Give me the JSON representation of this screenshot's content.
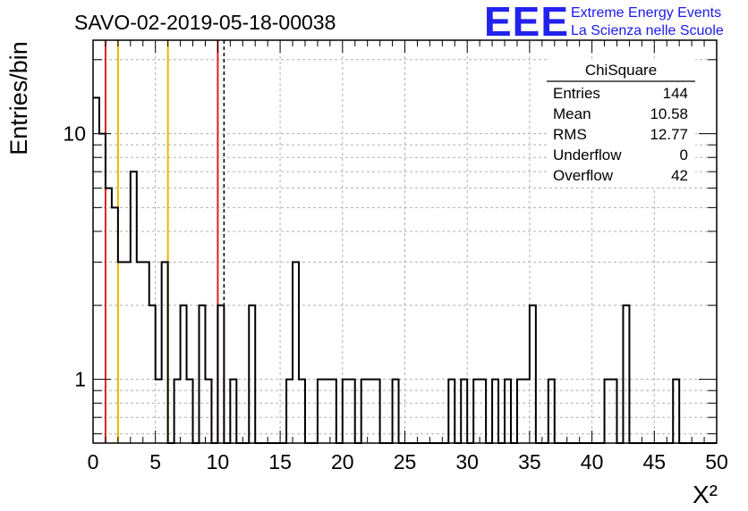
{
  "chart_data": {
    "type": "histogram",
    "title": "SAVO-02-2019-05-18-00038",
    "xlabel": "X²",
    "ylabel": "Entries/bin",
    "xlim": [
      0,
      50
    ],
    "ylim": [
      0.55,
      24
    ],
    "y_scale": "log",
    "grid": true,
    "x_ticks": [
      "0",
      "5",
      "10",
      "15",
      "20",
      "25",
      "30",
      "35",
      "40",
      "45",
      "50"
    ],
    "y_ticks": [
      "1",
      "10"
    ],
    "bin_width": 0.5,
    "bins": [
      {
        "x": 0.0,
        "y": 14
      },
      {
        "x": 0.5,
        "y": 10
      },
      {
        "x": 1.0,
        "y": 6
      },
      {
        "x": 1.5,
        "y": 5
      },
      {
        "x": 2.0,
        "y": 3
      },
      {
        "x": 2.5,
        "y": 3
      },
      {
        "x": 3.0,
        "y": 7
      },
      {
        "x": 3.5,
        "y": 3
      },
      {
        "x": 4.0,
        "y": 3
      },
      {
        "x": 4.5,
        "y": 2
      },
      {
        "x": 5.0,
        "y": 1
      },
      {
        "x": 5.5,
        "y": 3
      },
      {
        "x": 6.5,
        "y": 1
      },
      {
        "x": 7.0,
        "y": 2
      },
      {
        "x": 7.5,
        "y": 1
      },
      {
        "x": 8.5,
        "y": 2
      },
      {
        "x": 9.0,
        "y": 1
      },
      {
        "x": 10.0,
        "y": 2
      },
      {
        "x": 11.0,
        "y": 1
      },
      {
        "x": 12.5,
        "y": 2
      },
      {
        "x": 15.5,
        "y": 1
      },
      {
        "x": 16.0,
        "y": 3
      },
      {
        "x": 16.5,
        "y": 1
      },
      {
        "x": 18.0,
        "y": 1
      },
      {
        "x": 18.5,
        "y": 1
      },
      {
        "x": 19.0,
        "y": 1
      },
      {
        "x": 20.0,
        "y": 1
      },
      {
        "x": 20.5,
        "y": 1
      },
      {
        "x": 21.5,
        "y": 1
      },
      {
        "x": 22.0,
        "y": 1
      },
      {
        "x": 22.5,
        "y": 1
      },
      {
        "x": 24.0,
        "y": 1
      },
      {
        "x": 28.5,
        "y": 1
      },
      {
        "x": 29.5,
        "y": 1
      },
      {
        "x": 30.5,
        "y": 1
      },
      {
        "x": 31.0,
        "y": 1
      },
      {
        "x": 32.0,
        "y": 1
      },
      {
        "x": 33.0,
        "y": 1
      },
      {
        "x": 34.0,
        "y": 1
      },
      {
        "x": 34.5,
        "y": 1
      },
      {
        "x": 35.0,
        "y": 2
      },
      {
        "x": 36.5,
        "y": 1
      },
      {
        "x": 41.0,
        "y": 1
      },
      {
        "x": 41.5,
        "y": 1
      },
      {
        "x": 42.5,
        "y": 2
      },
      {
        "x": 46.5,
        "y": 1
      }
    ],
    "vertical_lines": [
      {
        "x": 1.0,
        "color": "#dd2222",
        "style": "solid"
      },
      {
        "x": 2.0,
        "color": "#f0b400",
        "style": "solid"
      },
      {
        "x": 6.0,
        "color": "#f0b400",
        "style": "solid"
      },
      {
        "x": 10.0,
        "color": "#dd2222",
        "style": "solid"
      },
      {
        "x": 10.5,
        "color": "#000000",
        "style": "dashed"
      }
    ],
    "stats_box": {
      "title": "ChiSquare",
      "rows": [
        {
          "label": "Entries",
          "value": "144"
        },
        {
          "label": "Mean",
          "value": "10.58"
        },
        {
          "label": "RMS",
          "value": "12.77"
        },
        {
          "label": "Underflow",
          "value": "0"
        },
        {
          "label": "Overflow",
          "value": "42"
        }
      ]
    }
  },
  "logo": {
    "mark": "EEE",
    "line1": "Extreme Energy Events",
    "line2": "La Scienza nelle Scuole",
    "color": "#2222ee"
  }
}
